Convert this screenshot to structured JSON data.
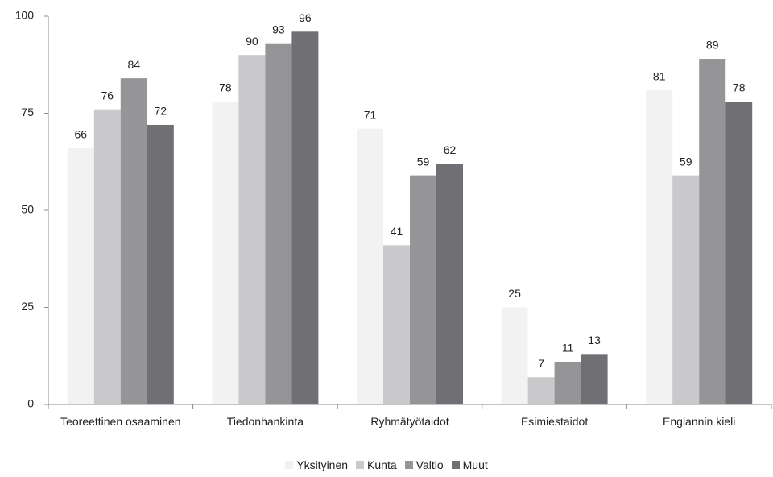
{
  "chart_data": {
    "type": "bar",
    "categories": [
      "Teoreettinen osaaminen",
      "Tiedonhankinta",
      "Ryhmätyötaidot",
      "Esimiestaidot",
      "Englannin kieli"
    ],
    "series": [
      {
        "name": "Yksityinen",
        "color": "#f2f2f3",
        "values": [
          66,
          78,
          71,
          25,
          81
        ]
      },
      {
        "name": "Kunta",
        "color": "#c9c9cb",
        "values": [
          76,
          90,
          41,
          7,
          59
        ]
      },
      {
        "name": "Valtio",
        "color": "#959598",
        "values": [
          84,
          93,
          59,
          11,
          89
        ]
      },
      {
        "name": "Muut",
        "color": "#707074",
        "values": [
          72,
          96,
          62,
          13,
          78
        ]
      }
    ],
    "ylim": [
      0,
      100
    ],
    "yticks": [
      0,
      25,
      50,
      75,
      100
    ],
    "grid": false,
    "legend": "bottom"
  }
}
